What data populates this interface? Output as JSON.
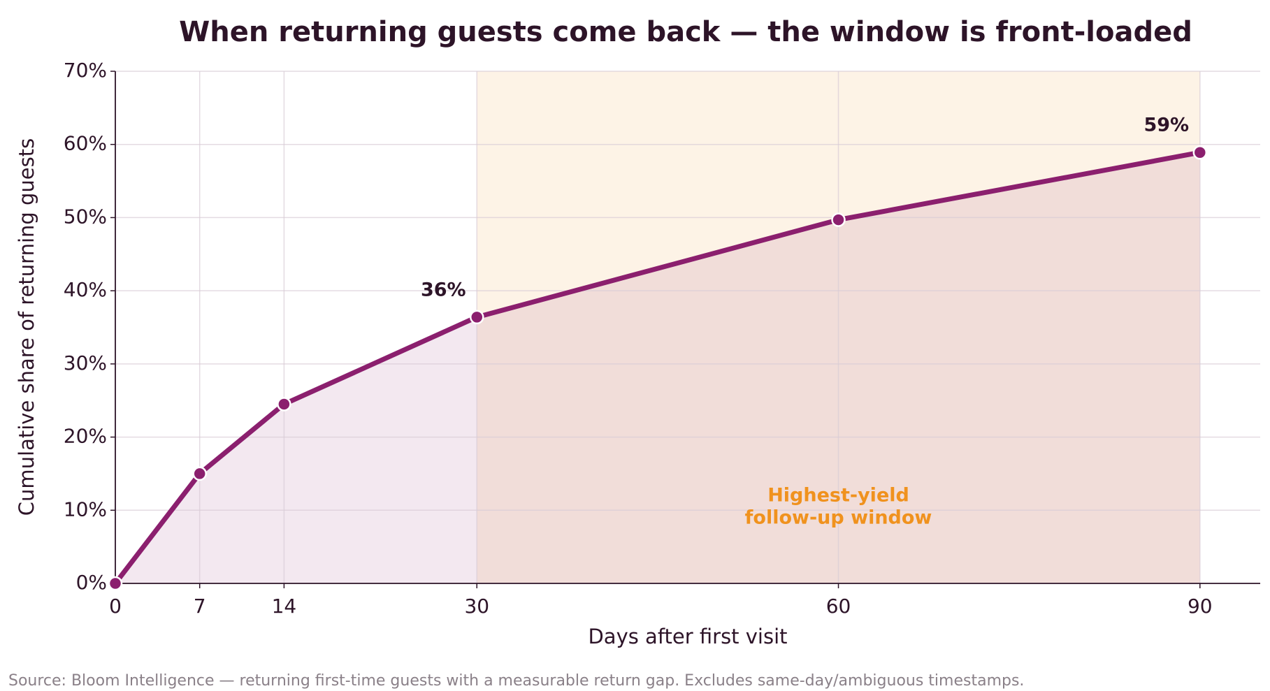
{
  "chart_data": {
    "type": "line",
    "title": "When returning guests come back — the window is front-loaded",
    "x_label": "Days after first visit",
    "y_label": "Cumulative share of returning guests",
    "x": [
      0,
      7,
      14,
      30,
      60,
      90
    ],
    "values": [
      0,
      15,
      24.5,
      36.4,
      49.7,
      58.9
    ],
    "value_labels": [
      null,
      null,
      null,
      "36%",
      null,
      "59%"
    ],
    "color": "#8b1f6e",
    "xlim": [
      0,
      95
    ],
    "ylim": [
      0,
      70
    ],
    "xticks": [
      0,
      7,
      14,
      30,
      60,
      90
    ],
    "yticks": [
      {
        "value": 0,
        "label": "0%"
      },
      {
        "value": 10,
        "label": "10%"
      },
      {
        "value": 20,
        "label": "20%"
      },
      {
        "value": 30,
        "label": "30%"
      },
      {
        "value": 40,
        "label": "40%"
      },
      {
        "value": 50,
        "label": "50%"
      },
      {
        "value": 60,
        "label": "60%"
      },
      {
        "value": 70,
        "label": "70%"
      }
    ],
    "grid": true,
    "highlight_span": [
      30,
      90
    ],
    "highlight_color": "#fdf3e6",
    "highlight_label": [
      "Highest-yield",
      "follow-up window"
    ],
    "highlight_label_color": "#f0921e",
    "source": "Source: Bloom Intelligence — returning first-time guests with a measurable return gap. Excludes same-day/ambiguous timestamps."
  }
}
